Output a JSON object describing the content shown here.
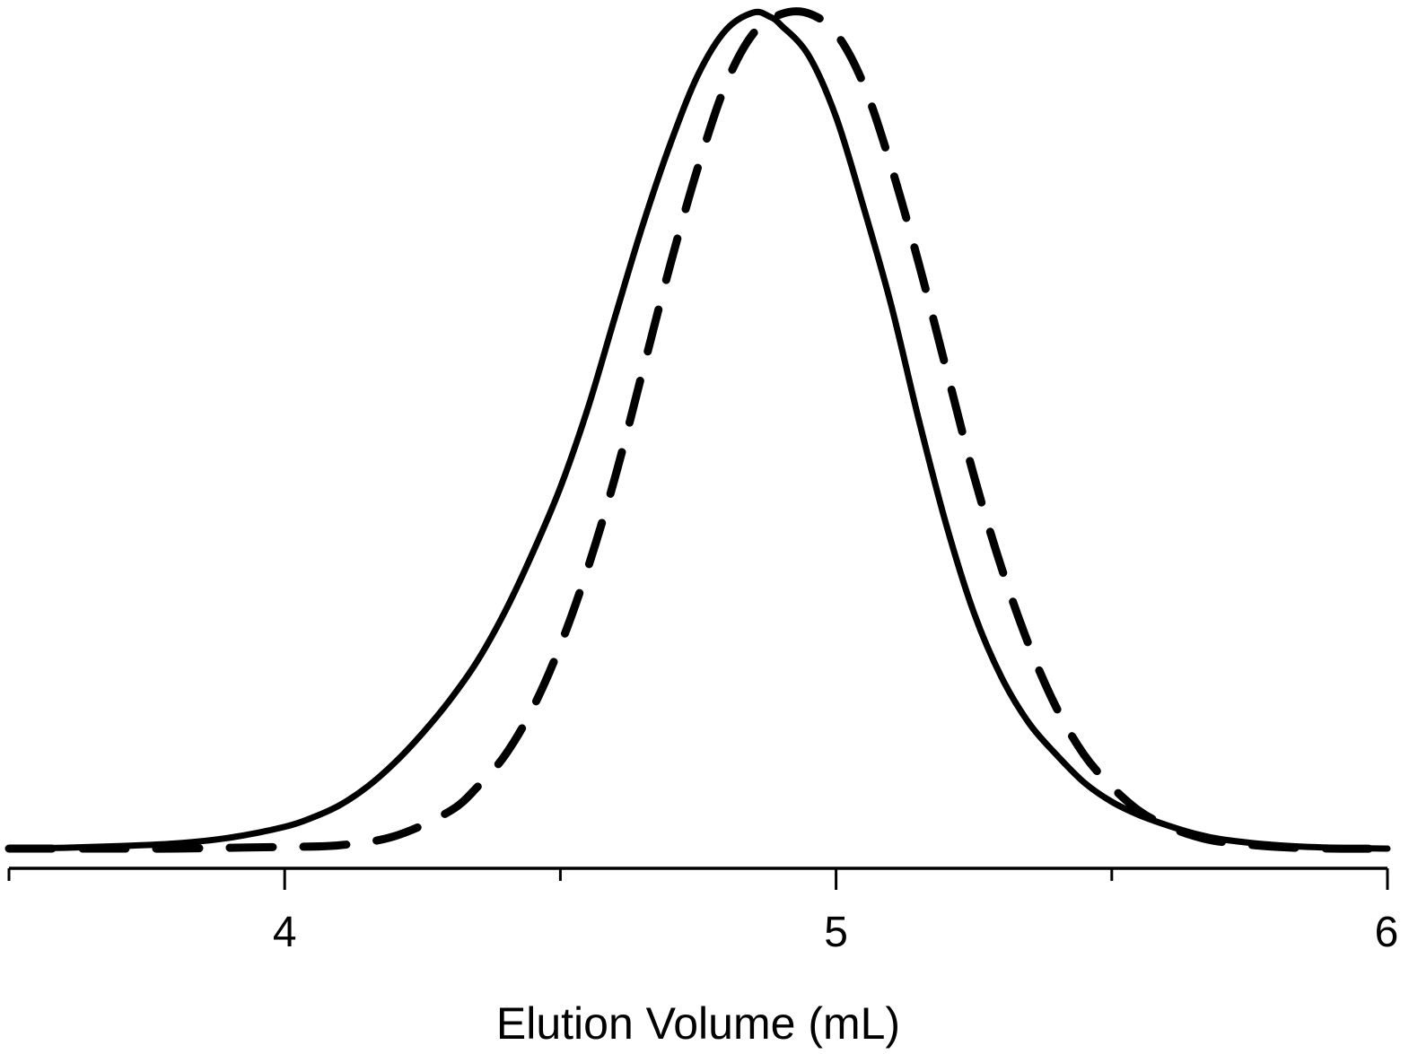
{
  "chart_data": {
    "type": "line",
    "xlabel": "Elution Volume (mL)",
    "ylabel": "",
    "xlim": [
      3.5,
      6.0
    ],
    "ylim": [
      0,
      1.0
    ],
    "xticks": [
      4,
      5,
      6
    ],
    "minor_ticks": true,
    "grid": false,
    "y_axis_visible": false,
    "series": [
      {
        "style": "solid",
        "color": "#000000",
        "x": [
          3.5,
          3.6,
          3.7,
          3.8,
          3.9,
          4.0,
          4.05,
          4.1,
          4.15,
          4.2,
          4.25,
          4.3,
          4.35,
          4.4,
          4.45,
          4.5,
          4.55,
          4.6,
          4.65,
          4.7,
          4.75,
          4.8,
          4.85,
          4.88,
          4.9,
          4.95,
          5.0,
          5.05,
          5.1,
          5.15,
          5.2,
          5.25,
          5.3,
          5.35,
          5.4,
          5.45,
          5.5,
          5.55,
          5.6,
          5.65,
          5.7,
          5.8,
          5.9,
          6.0
        ],
        "y": [
          0.0,
          0.001,
          0.003,
          0.006,
          0.013,
          0.026,
          0.037,
          0.052,
          0.074,
          0.103,
          0.138,
          0.178,
          0.225,
          0.284,
          0.354,
          0.432,
          0.527,
          0.638,
          0.747,
          0.844,
          0.926,
          0.979,
          1.0,
          0.995,
          0.985,
          0.949,
          0.875,
          0.767,
          0.65,
          0.513,
          0.387,
          0.282,
          0.205,
          0.15,
          0.112,
          0.079,
          0.056,
          0.04,
          0.028,
          0.018,
          0.011,
          0.004,
          0.001,
          0.0
        ]
      },
      {
        "style": "dashed",
        "color": "#000000",
        "x": [
          3.5,
          3.6,
          3.7,
          3.8,
          3.9,
          4.0,
          4.1,
          4.2,
          4.3,
          4.35,
          4.4,
          4.45,
          4.5,
          4.55,
          4.6,
          4.65,
          4.7,
          4.75,
          4.8,
          4.85,
          4.9,
          4.95,
          5.0,
          5.05,
          5.1,
          5.15,
          5.2,
          5.25,
          5.3,
          5.35,
          5.4,
          5.45,
          5.5,
          5.55,
          5.6,
          5.65,
          5.7,
          5.8,
          5.9,
          6.0
        ],
        "y": [
          0.0,
          0.0,
          0.0,
          0.0,
          0.001,
          0.002,
          0.004,
          0.015,
          0.045,
          0.074,
          0.112,
          0.168,
          0.243,
          0.336,
          0.446,
          0.573,
          0.7,
          0.816,
          0.914,
          0.975,
          0.998,
          0.999,
          0.975,
          0.914,
          0.816,
          0.7,
          0.573,
          0.446,
          0.336,
          0.243,
          0.168,
          0.112,
          0.074,
          0.045,
          0.027,
          0.015,
          0.008,
          0.002,
          0.0,
          0.0
        ]
      }
    ]
  }
}
